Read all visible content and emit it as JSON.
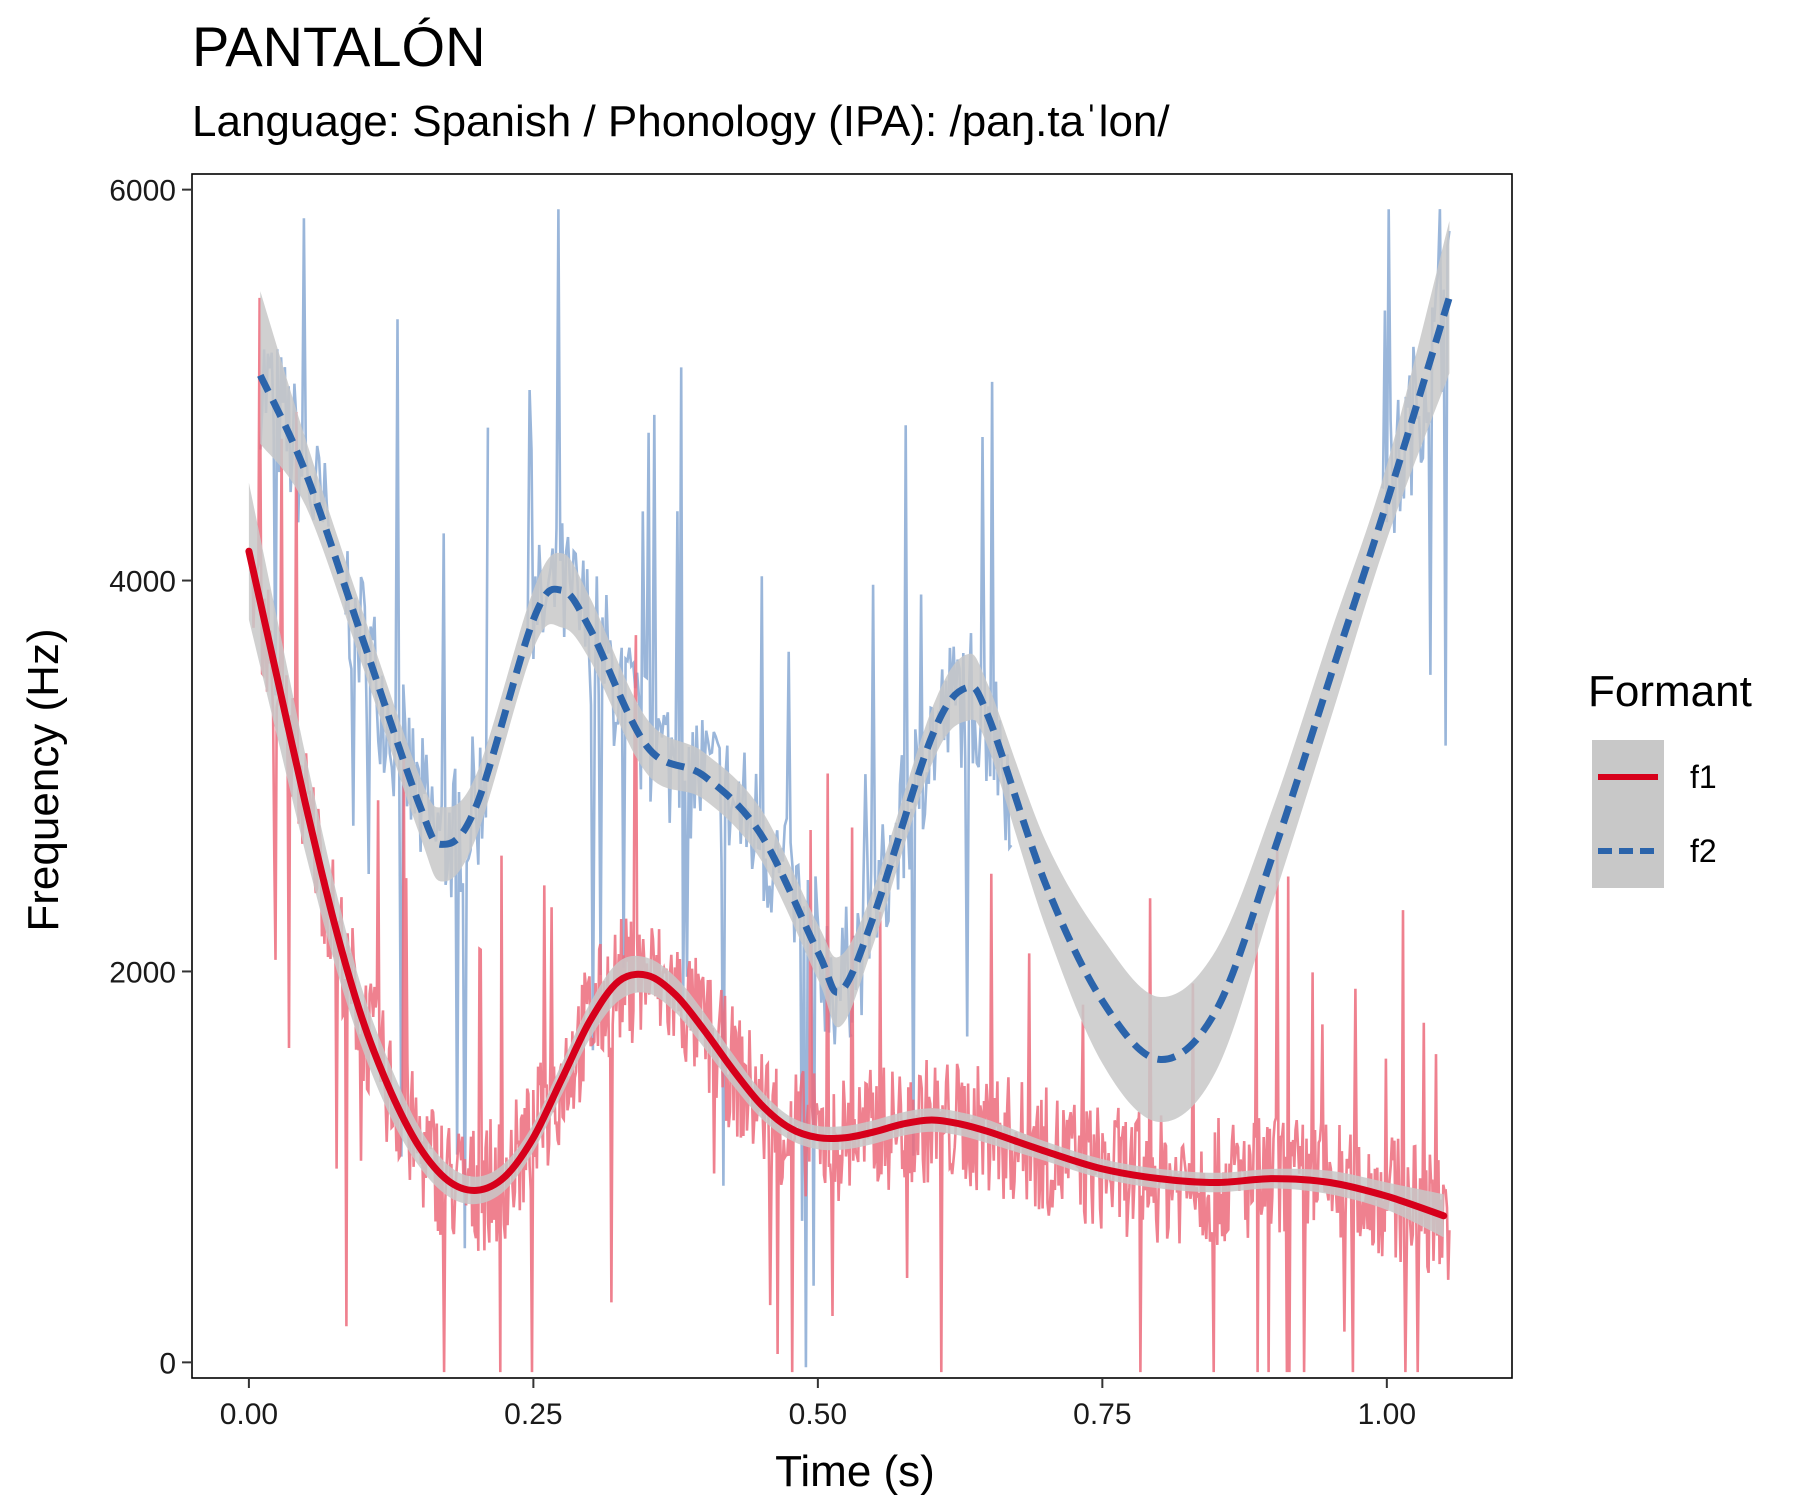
{
  "chart_data": {
    "type": "line",
    "title": "PANTALÓN",
    "subtitle": "Language: Spanish / Phonology (IPA): /paŋ.taˈlon/",
    "xlabel": "Time (s)",
    "ylabel": "Frequency (Hz)",
    "xlim": [
      -0.05,
      1.11
    ],
    "ylim": [
      -80,
      6080
    ],
    "x_ticks": [
      0,
      0.25,
      0.5,
      0.75,
      1.0
    ],
    "x_tick_labels": [
      "0.00",
      "0.25",
      "0.50",
      "0.75",
      "1.00"
    ],
    "y_ticks": [
      0,
      2000,
      4000,
      6000
    ],
    "y_tick_labels": [
      "0",
      "2000",
      "4000",
      "6000"
    ],
    "grid": false,
    "legend": {
      "title": "Formant",
      "position": "right",
      "entries": [
        {
          "label": "f1",
          "color": "#d7001b",
          "dash": "solid"
        },
        {
          "label": "f2",
          "color": "#2b64ab",
          "dash": "dashed"
        }
      ]
    },
    "colors": {
      "f1_raw": "#ec6b7b",
      "f2_raw": "#88a9d3",
      "f1_smooth": "#d7001b",
      "f2_smooth": "#2b64ab",
      "ribbon": "#c8c8c8"
    },
    "series": [
      {
        "name": "f1",
        "smooth": {
          "x": [
            0.0,
            0.025,
            0.05,
            0.075,
            0.1,
            0.125,
            0.15,
            0.175,
            0.2,
            0.225,
            0.25,
            0.275,
            0.3,
            0.325,
            0.35,
            0.375,
            0.4,
            0.425,
            0.45,
            0.475,
            0.5,
            0.525,
            0.55,
            0.575,
            0.6,
            0.625,
            0.65,
            0.7,
            0.75,
            0.8,
            0.85,
            0.9,
            0.95,
            1.0,
            1.05
          ],
          "y": [
            4150,
            3500,
            2850,
            2250,
            1750,
            1380,
            1100,
            930,
            880,
            950,
            1150,
            1450,
            1750,
            1950,
            1980,
            1880,
            1700,
            1500,
            1320,
            1200,
            1150,
            1150,
            1180,
            1220,
            1240,
            1220,
            1180,
            1080,
            990,
            940,
            920,
            940,
            920,
            850,
            750
          ],
          "band_lower": [
            3800,
            3200,
            2600,
            2050,
            1600,
            1250,
            1000,
            850,
            810,
            880,
            1080,
            1370,
            1660,
            1850,
            1890,
            1790,
            1610,
            1420,
            1250,
            1140,
            1090,
            1090,
            1120,
            1160,
            1180,
            1160,
            1120,
            1030,
            940,
            890,
            870,
            890,
            860,
            780,
            640
          ],
          "band_upper": [
            4500,
            3800,
            3100,
            2450,
            1900,
            1510,
            1200,
            1010,
            950,
            1020,
            1220,
            1530,
            1840,
            2050,
            2070,
            1970,
            1790,
            1580,
            1390,
            1260,
            1210,
            1210,
            1240,
            1280,
            1300,
            1280,
            1240,
            1130,
            1040,
            990,
            970,
            990,
            980,
            920,
            860
          ]
        }
      },
      {
        "name": "f2",
        "smooth": {
          "x": [
            0.01,
            0.05,
            0.1,
            0.15,
            0.17,
            0.2,
            0.25,
            0.275,
            0.3,
            0.35,
            0.4,
            0.45,
            0.5,
            0.52,
            0.55,
            0.6,
            0.63,
            0.65,
            0.7,
            0.75,
            0.8,
            0.85,
            0.9,
            0.95,
            1.0,
            1.055
          ],
          "y": [
            5050,
            4550,
            3700,
            2850,
            2650,
            2850,
            3800,
            3950,
            3750,
            3150,
            3000,
            2700,
            2100,
            1900,
            2300,
            3200,
            3450,
            3300,
            2450,
            1850,
            1550,
            1800,
            2600,
            3500,
            4400,
            5450
          ],
          "band_lower": [
            4700,
            4380,
            3560,
            2700,
            2460,
            2690,
            3650,
            3760,
            3590,
            3010,
            2880,
            2570,
            1960,
            1720,
            2160,
            3060,
            3280,
            3140,
            2230,
            1530,
            1230,
            1490,
            2360,
            3280,
            4210,
            5060
          ],
          "band_upper": [
            5480,
            4720,
            3840,
            3000,
            2840,
            3010,
            3950,
            4140,
            3910,
            3290,
            3120,
            2830,
            2240,
            2080,
            2440,
            3340,
            3620,
            3460,
            2670,
            2170,
            1870,
            2110,
            2840,
            3720,
            4590,
            5840
          ]
        }
      }
    ]
  }
}
